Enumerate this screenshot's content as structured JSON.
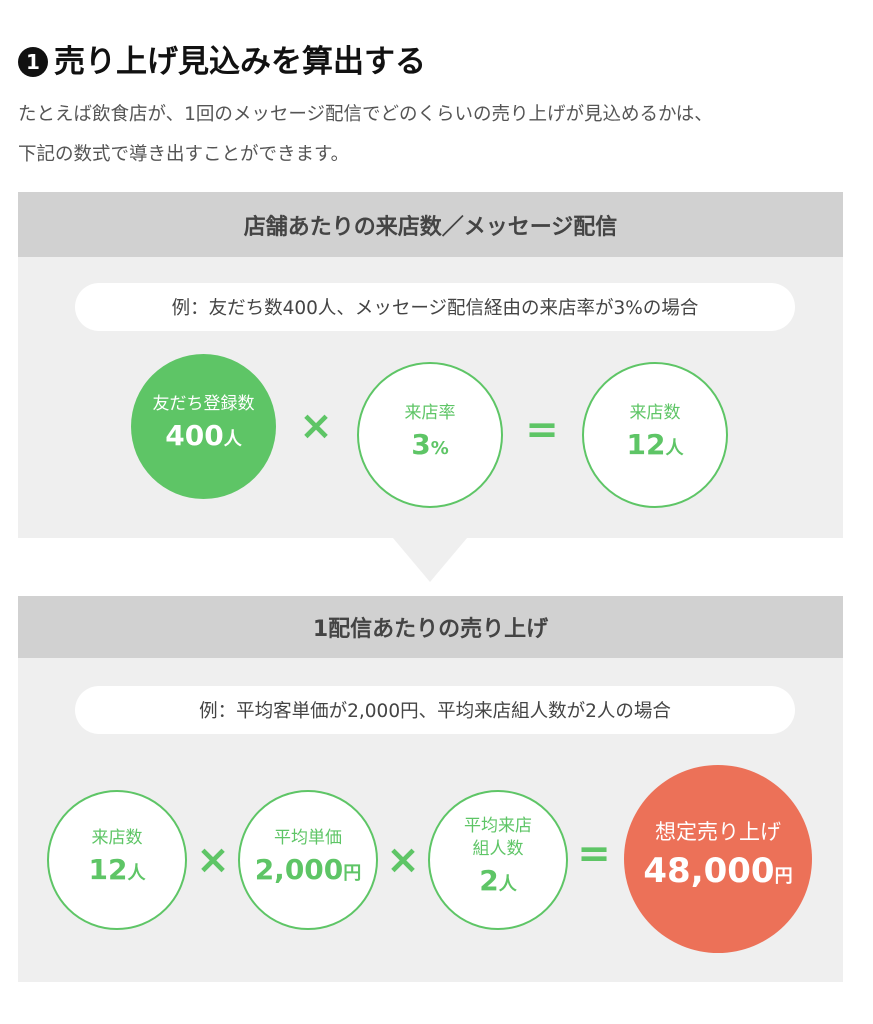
{
  "heading": {
    "number": "1",
    "title": "売り上げ見込みを算出する"
  },
  "intro": [
    "たとえば飲食店が、1回のメッセージ配信でどのくらいの売り上げが見込めるかは、",
    "下記の数式で導き出すことができます。"
  ],
  "colors": {
    "green": "#5ec566",
    "orange": "#ec7158",
    "header_gray": "#d1d1d1",
    "panel_gray": "#efefef"
  },
  "section1": {
    "title": "店舗あたりの来店数／メッセージ配信",
    "example": "例：友だち数400人、メッセージ配信経由の来店率が3%の場合",
    "items": [
      {
        "label": "友だち登録数",
        "value": "400",
        "unit": "人"
      },
      {
        "label": "来店率",
        "value": "3",
        "unit": "%"
      },
      {
        "label": "来店数",
        "value": "12",
        "unit": "人"
      }
    ],
    "ops": [
      "×",
      "="
    ]
  },
  "section2": {
    "title": "1配信あたりの売り上げ",
    "example": "例：平均客単価が2,000円、平均来店組人数が2人の場合",
    "items": [
      {
        "label": "来店数",
        "value": "12",
        "unit": "人"
      },
      {
        "label": "平均単価",
        "value": "2,000",
        "unit": "円"
      },
      {
        "label": "平均来店",
        "label2": "組人数",
        "value": "2",
        "unit": "人"
      },
      {
        "label": "想定売り上げ",
        "value": "48,000",
        "unit": "円"
      }
    ],
    "ops": [
      "×",
      "×",
      "="
    ]
  }
}
